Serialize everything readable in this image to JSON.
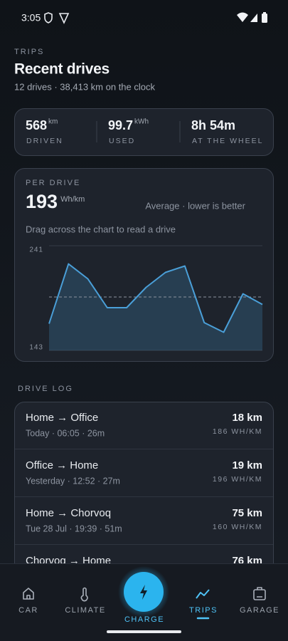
{
  "status_bar": {
    "time": "3:05"
  },
  "header": {
    "eyebrow": "TRIPS",
    "title": "Recent drives",
    "subtitle": "12 drives · 38,413 km on the clock"
  },
  "stats": [
    {
      "value": 568,
      "unit": "km",
      "label": "DRIVEN"
    },
    {
      "value": 99.7,
      "unit": "kWh",
      "label": "USED"
    },
    {
      "value": "8h 54m",
      "label": "AT THE WHEEL"
    }
  ],
  "chart_data": {
    "type": "line",
    "eyebrow": "PER DRIVE",
    "average": 193,
    "unit": "Wh/km",
    "note": "Average · lower is better",
    "hint": "Drag across the chart to read a drive",
    "values": [
      168,
      224,
      210,
      183,
      183,
      202,
      216,
      222,
      169,
      160,
      196,
      186
    ],
    "color": "#4a9fd8",
    "ylim": [
      143,
      241
    ],
    "yticks": [
      143,
      241
    ]
  },
  "drive_log": {
    "title": "DRIVE LOG",
    "rows": [
      {
        "route": "Home → Office",
        "detail": "Today · 06:05 · 26m",
        "distance": "18 km",
        "efficiency": "186 WH/KM"
      },
      {
        "route": "Office → Home",
        "detail": "Yesterday · 12:52 · 27m",
        "distance": "19 km",
        "efficiency": "196 WH/KM"
      },
      {
        "route": "Home → Chorvoq",
        "detail": "Tue 28 Jul · 19:39 · 51m",
        "distance": "75 km",
        "efficiency": "160 WH/KM"
      },
      {
        "route": "Chorvoq → Home",
        "distance": "76 km"
      }
    ]
  },
  "nav": {
    "items": [
      {
        "label": "CAR"
      },
      {
        "label": "CLIMATE"
      },
      {
        "label": "CHARGE"
      },
      {
        "label": "TRIPS",
        "active": true
      },
      {
        "label": "GARAGE"
      }
    ]
  }
}
